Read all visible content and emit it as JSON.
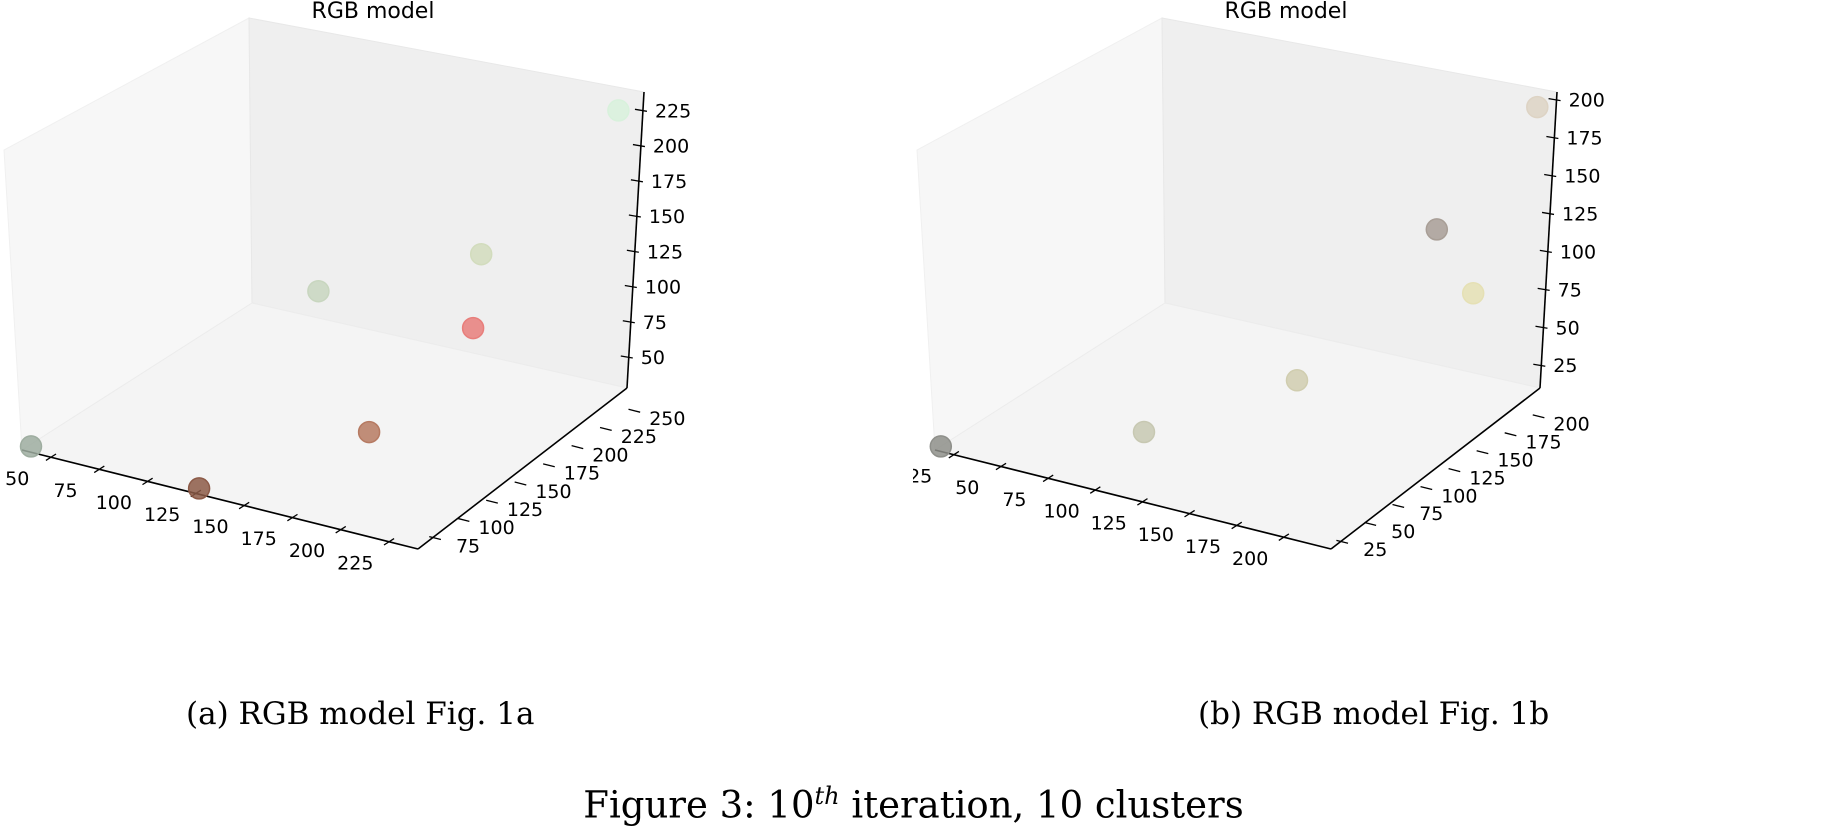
{
  "chart_data": [
    {
      "type": "scatter",
      "projection": "3d",
      "title": "RGB model",
      "caption": "(a) RGB model Fig. 1a",
      "xlabel": "",
      "ylabel": "",
      "zlabel": "",
      "xlim": [
        35,
        240
      ],
      "ylim": [
        60,
        262
      ],
      "zlim": [
        28,
        238
      ],
      "x_ticks": [
        "50",
        "75",
        "100",
        "125",
        "150",
        "175",
        "200",
        "225"
      ],
      "y_ticks": [
        "75",
        "100",
        "125",
        "150",
        "175",
        "200",
        "225",
        "250"
      ],
      "z_ticks": [
        "50",
        "75",
        "100",
        "125",
        "150",
        "175",
        "200",
        "225"
      ],
      "grid": false,
      "points": [
        {
          "x": 38,
          "y": 63,
          "z": 30,
          "color": "#9eada0"
        },
        {
          "x": 125,
          "y": 63,
          "z": 30,
          "color": "#8c5a47"
        },
        {
          "x": 190,
          "y": 105,
          "z": 70,
          "color": "#b67a62"
        },
        {
          "x": 115,
          "y": 190,
          "z": 100,
          "color": "#c8d6bf"
        },
        {
          "x": 220,
          "y": 150,
          "z": 130,
          "color": "#e87e7b"
        },
        {
          "x": 180,
          "y": 225,
          "z": 130,
          "color": "#d2dcbd"
        },
        {
          "x": 238,
          "y": 255,
          "z": 235,
          "color": "#d8f1dc"
        }
      ]
    },
    {
      "type": "scatter",
      "projection": "3d",
      "title": "RGB model",
      "caption": "(b) RGB model Fig. 1b",
      "xlabel": "",
      "ylabel": "",
      "zlabel": "",
      "xlim": [
        15,
        225
      ],
      "ylim": [
        15,
        220
      ],
      "zlim": [
        10,
        205
      ],
      "x_ticks": [
        "25",
        "50",
        "75",
        "100",
        "125",
        "150",
        "175",
        "200"
      ],
      "y_ticks": [
        "25",
        "50",
        "75",
        "100",
        "125",
        "150",
        "175",
        "200"
      ],
      "z_ticks": [
        "25",
        "50",
        "75",
        "100",
        "125",
        "150",
        "175",
        "200"
      ],
      "grid": false,
      "points": [
        {
          "x": 17,
          "y": 17,
          "z": 12,
          "color": "#8e8f8a"
        },
        {
          "x": 103,
          "y": 55,
          "z": 30,
          "color": "#c7c8b2"
        },
        {
          "x": 140,
          "y": 130,
          "z": 40,
          "color": "#d0cdaf"
        },
        {
          "x": 170,
          "y": 210,
          "z": 110,
          "color": "#a89e96"
        },
        {
          "x": 222,
          "y": 155,
          "z": 110,
          "color": "#e5e0b4"
        },
        {
          "x": 223,
          "y": 218,
          "z": 202,
          "color": "#ddd3c4"
        }
      ]
    }
  ],
  "figure_caption": {
    "prefix": "Figure 3: 10",
    "superscript": "th",
    "suffix": " iteration, 10 clusters"
  }
}
